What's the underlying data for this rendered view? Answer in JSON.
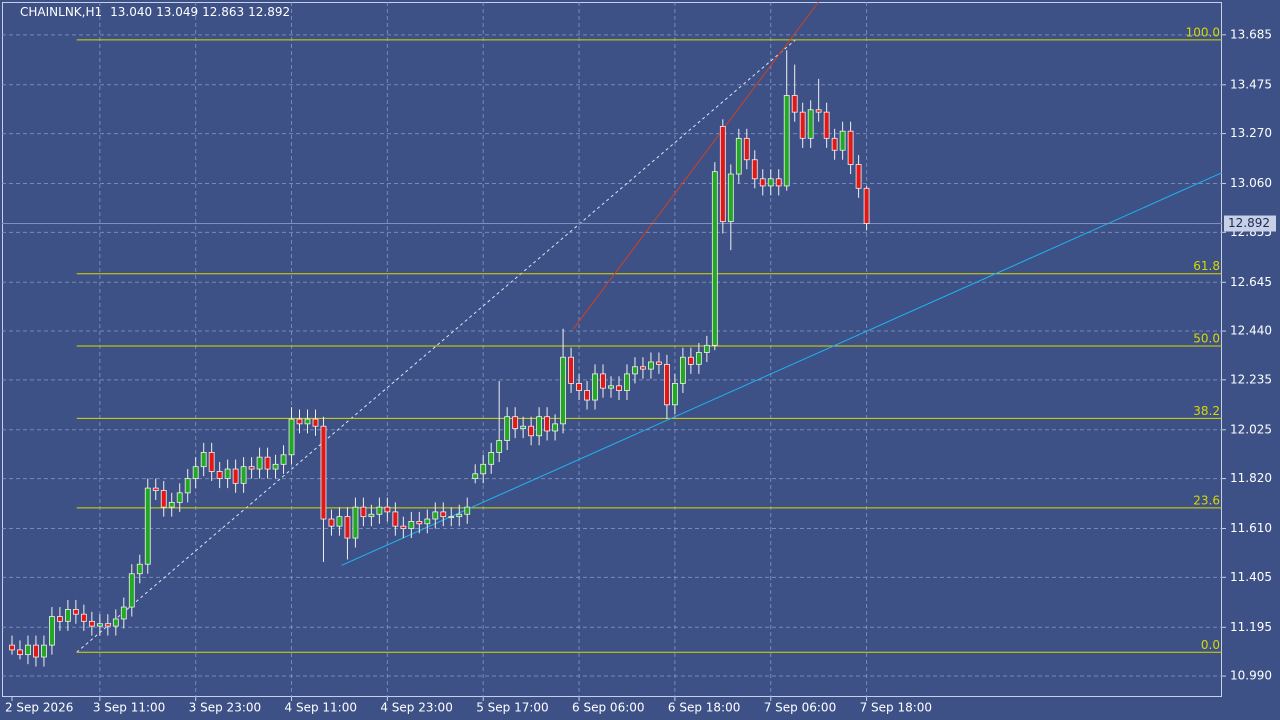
{
  "chart_data": {
    "type": "candlestick",
    "symbol": "CHAINLNK,H1",
    "header_values": [
      "13.040",
      "13.049",
      "12.863",
      "12.892"
    ],
    "categories": [
      "2 Sep 2026",
      null,
      null,
      null,
      null,
      null,
      null,
      null,
      null,
      null,
      null,
      "3 Sep 11:00",
      null,
      null,
      null,
      null,
      null,
      null,
      null,
      null,
      null,
      null,
      null,
      "3 Sep 23:00",
      null,
      null,
      null,
      null,
      null,
      null,
      null,
      null,
      null,
      null,
      null,
      "4 Sep 11:00",
      null,
      null,
      null,
      null,
      null,
      null,
      null,
      null,
      null,
      null,
      null,
      "4 Sep 23:00",
      null,
      null,
      null,
      null,
      null,
      null,
      null,
      null,
      null,
      null,
      null,
      "5 Sep 17:00",
      null,
      null,
      null,
      null,
      null,
      null,
      null,
      null,
      null,
      null,
      null,
      "6 Sep 06:00",
      null,
      null,
      null,
      null,
      null,
      null,
      null,
      null,
      null,
      null,
      null,
      "6 Sep 18:00",
      null,
      null,
      null,
      null,
      null,
      null,
      null,
      null,
      null,
      null,
      null,
      "7 Sep 06:00",
      null,
      null,
      null,
      null,
      null,
      null,
      null,
      null,
      null,
      null,
      null,
      "7 Sep 18:00"
    ],
    "open": [
      11.12,
      11.1,
      11.08,
      11.12,
      11.07,
      11.12,
      11.24,
      11.22,
      11.27,
      11.25,
      11.22,
      11.2,
      11.21,
      11.2,
      11.23,
      11.28,
      11.42,
      11.46,
      11.78,
      11.77,
      11.7,
      11.72,
      11.76,
      11.82,
      11.87,
      11.93,
      11.85,
      11.82,
      11.86,
      11.8,
      11.87,
      11.86,
      11.91,
      11.86,
      11.88,
      11.92,
      12.07,
      12.05,
      12.07,
      12.04,
      11.65,
      11.62,
      11.66,
      11.57,
      11.7,
      11.66,
      11.67,
      11.7,
      11.68,
      11.62,
      11.61,
      11.64,
      11.63,
      11.65,
      11.68,
      11.66,
      11.66,
      11.67,
      11.82,
      11.84,
      11.88,
      11.93,
      11.98,
      12.08,
      12.03,
      12.04,
      12.0,
      12.08,
      12.02,
      12.05,
      12.33,
      12.22,
      12.19,
      12.15,
      12.26,
      12.2,
      12.21,
      12.19,
      12.26,
      12.29,
      12.28,
      12.31,
      12.3,
      12.13,
      12.22,
      12.33,
      12.3,
      12.35,
      12.38,
      13.3,
      12.9,
      13.1,
      13.25,
      13.16,
      13.08,
      13.05,
      13.08,
      13.05,
      13.43,
      13.36,
      13.25,
      13.37,
      13.36,
      13.25,
      13.2,
      13.28,
      13.14,
      13.04
    ],
    "high": [
      11.16,
      11.14,
      11.16,
      11.16,
      11.16,
      11.28,
      11.28,
      11.31,
      11.31,
      11.29,
      11.26,
      11.25,
      11.25,
      11.27,
      11.32,
      11.46,
      11.5,
      11.82,
      11.82,
      11.81,
      11.76,
      11.8,
      11.86,
      11.91,
      11.97,
      11.97,
      11.89,
      11.9,
      11.9,
      11.91,
      11.91,
      11.95,
      11.95,
      11.92,
      11.96,
      12.12,
      12.11,
      12.11,
      12.11,
      12.08,
      11.69,
      11.7,
      11.7,
      11.74,
      11.74,
      11.71,
      11.74,
      11.74,
      11.72,
      11.66,
      11.68,
      11.68,
      11.69,
      11.72,
      11.72,
      11.7,
      11.71,
      11.74,
      11.88,
      11.92,
      11.97,
      12.23,
      12.12,
      12.12,
      12.08,
      12.08,
      12.12,
      12.12,
      12.09,
      12.45,
      12.37,
      12.26,
      12.23,
      12.3,
      12.3,
      12.25,
      12.25,
      12.3,
      12.33,
      12.33,
      12.35,
      12.35,
      12.34,
      12.26,
      12.37,
      12.37,
      12.39,
      12.42,
      13.15,
      13.33,
      13.14,
      13.29,
      13.29,
      13.2,
      13.12,
      13.12,
      13.12,
      13.62,
      13.56,
      13.4,
      13.41,
      13.5,
      13.4,
      13.29,
      13.32,
      13.32,
      13.18,
      13.049
    ],
    "low": [
      11.08,
      11.06,
      11.04,
      11.03,
      11.03,
      11.08,
      11.18,
      11.18,
      11.21,
      11.18,
      11.16,
      11.16,
      11.16,
      11.16,
      11.19,
      11.24,
      11.38,
      11.42,
      11.73,
      11.66,
      11.66,
      11.68,
      11.72,
      11.78,
      11.83,
      11.81,
      11.78,
      11.78,
      11.76,
      11.76,
      11.82,
      11.82,
      11.82,
      11.82,
      11.84,
      11.88,
      12.01,
      12.01,
      12.0,
      11.47,
      11.58,
      11.58,
      11.48,
      11.53,
      11.62,
      11.62,
      11.63,
      11.64,
      11.58,
      11.57,
      11.57,
      11.59,
      11.59,
      11.61,
      11.62,
      11.62,
      11.62,
      11.63,
      11.8,
      11.8,
      11.84,
      11.89,
      11.94,
      11.99,
      11.99,
      11.96,
      11.96,
      11.98,
      11.98,
      12.01,
      12.18,
      12.15,
      12.11,
      12.11,
      12.16,
      12.16,
      12.15,
      12.15,
      12.22,
      12.24,
      12.24,
      12.26,
      12.07,
      12.09,
      12.18,
      12.26,
      12.26,
      12.31,
      12.36,
      12.85,
      12.78,
      13.06,
      13.12,
      13.04,
      13.01,
      13.01,
      13.01,
      13.03,
      13.32,
      13.21,
      13.21,
      13.32,
      13.21,
      13.16,
      13.16,
      13.1,
      13.0,
      12.863
    ],
    "close": [
      11.1,
      11.08,
      11.12,
      11.07,
      11.12,
      11.24,
      11.22,
      11.27,
      11.25,
      11.22,
      11.2,
      11.21,
      11.2,
      11.23,
      11.28,
      11.42,
      11.46,
      11.78,
      11.77,
      11.7,
      11.72,
      11.76,
      11.82,
      11.87,
      11.93,
      11.85,
      11.82,
      11.86,
      11.8,
      11.87,
      11.86,
      11.91,
      11.86,
      11.88,
      11.92,
      12.07,
      12.05,
      12.07,
      12.04,
      11.65,
      11.62,
      11.66,
      11.57,
      11.7,
      11.66,
      11.67,
      11.7,
      11.68,
      11.62,
      11.61,
      11.64,
      11.63,
      11.65,
      11.68,
      11.66,
      11.66,
      11.67,
      11.7,
      11.84,
      11.88,
      11.93,
      11.98,
      12.08,
      12.03,
      12.04,
      12.0,
      12.08,
      12.02,
      12.05,
      12.33,
      12.22,
      12.19,
      12.15,
      12.26,
      12.2,
      12.21,
      12.19,
      12.26,
      12.29,
      12.28,
      12.31,
      12.3,
      12.13,
      12.22,
      12.33,
      12.3,
      12.35,
      12.38,
      13.11,
      12.9,
      13.1,
      13.25,
      13.16,
      13.08,
      13.05,
      13.08,
      13.05,
      13.43,
      13.36,
      13.25,
      13.37,
      13.36,
      13.25,
      13.2,
      13.28,
      13.14,
      13.04,
      12.892
    ],
    "up_color": "#22a822",
    "down_color": "#e01818",
    "xlim": [
      -1.25,
      151.5
    ],
    "ylim": [
      10.902,
      13.823
    ],
    "yticks": [
      {
        "value": 10.99,
        "label": "10.990"
      },
      11.195,
      11.405,
      {
        "value": 11.61,
        "label": "11.610"
      },
      {
        "value": 11.82,
        "label": "11.820"
      },
      12.025,
      12.235,
      {
        "value": 12.44,
        "label": "12.440"
      },
      12.645,
      12.855,
      {
        "value": 13.06,
        "label": "13.060"
      },
      {
        "value": 13.27,
        "label": "13.270"
      },
      13.475,
      13.685
    ],
    "grid": true,
    "last_price": {
      "value": 12.892,
      "label": "12.892"
    },
    "fibonacci": {
      "color": "#d8d800",
      "from": {
        "index": 8.1,
        "price": 11.09
      },
      "to": {
        "index": 98.1,
        "price": 13.664
      },
      "levels": [
        {
          "label": "100.0",
          "price": 13.664
        },
        {
          "label": "61.8",
          "price": 12.681
        },
        {
          "label": "50.0",
          "price": 12.377
        },
        {
          "label": "38.2",
          "price": 12.073
        },
        {
          "label": "23.6",
          "price": 11.697
        },
        {
          "label": "0.0",
          "price": 11.09
        }
      ]
    },
    "trendlines": [
      {
        "color": "#1eb4f0",
        "points": [
          {
            "index": 41.25,
            "price": 11.455
          },
          {
            "index": 83,
            "price": 12.08
          }
        ]
      },
      {
        "color": "#d04020",
        "points": [
          {
            "index": 70.25,
            "price": 12.448
          },
          {
            "index": 89,
            "price": 13.287
          }
        ]
      }
    ]
  }
}
